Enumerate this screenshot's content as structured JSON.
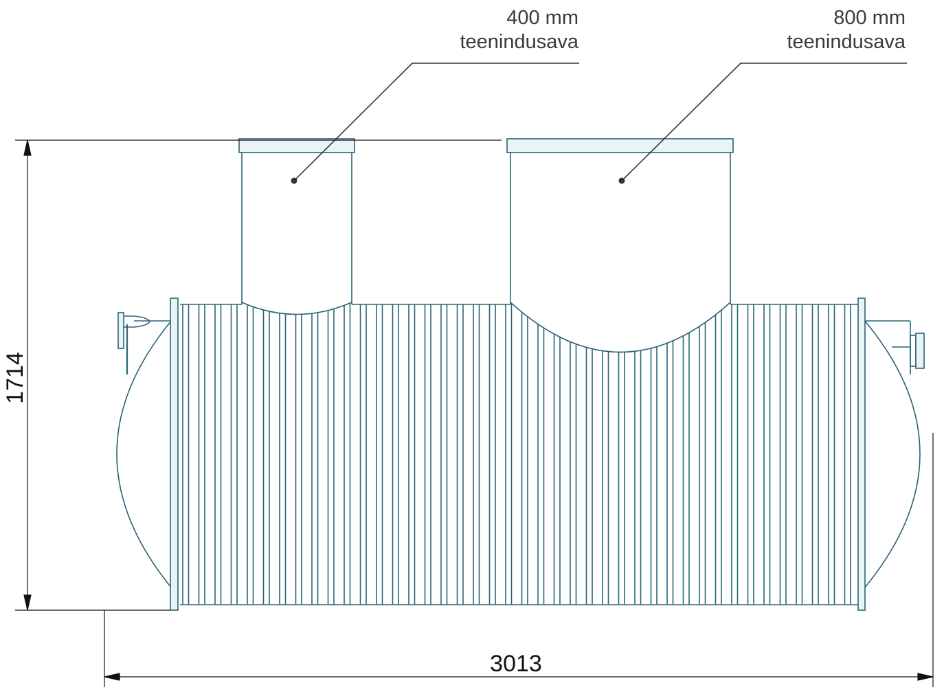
{
  "callouts": [
    {
      "size": "400 mm",
      "name": "teenindusava"
    },
    {
      "size": "800 mm",
      "name": "teenindusava"
    }
  ],
  "dimensions": {
    "height": "1714",
    "length": "3013"
  },
  "colors": {
    "tank_line": "#2b6474",
    "collar_fill": "#e8f4f6",
    "dimension_line": "#111111",
    "leader_line": "#333333"
  }
}
